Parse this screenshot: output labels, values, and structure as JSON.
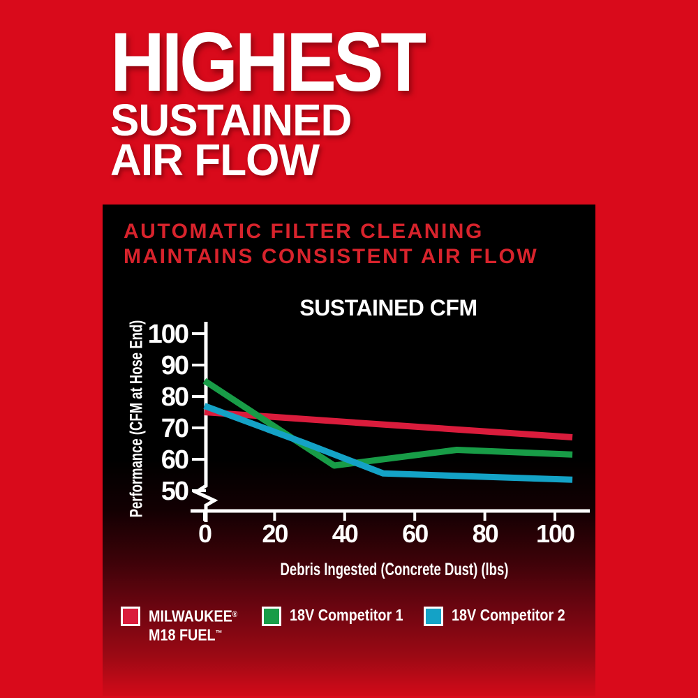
{
  "hero": {
    "line1": "HIGHEST",
    "line2": "SUSTAINED",
    "line3": "AIR FLOW"
  },
  "panel": {
    "heading_line1": "AUTOMATIC FILTER CLEANING",
    "heading_line2": "MAINTAINS CONSISTENT AIR FLOW",
    "heading_color": "#d8232c"
  },
  "colors": {
    "background_red": "#d90a1b",
    "panel_black": "#000000",
    "text_white": "#ffffff",
    "milwaukee_line": "#da1c3c",
    "competitor1_line": "#189c47",
    "competitor2_line": "#14a2c6"
  },
  "chart_data": {
    "type": "line",
    "title": "SUSTAINED CFM",
    "xlabel": "Debris Ingested (Concrete Dust) (lbs)",
    "ylabel": "Performance (CFM at Hose End)",
    "x_ticks": [
      0,
      20,
      40,
      60,
      80,
      100
    ],
    "y_ticks": [
      100,
      90,
      80,
      70,
      60,
      50
    ],
    "xlim": [
      0,
      110
    ],
    "ylim": [
      50,
      100
    ],
    "y_axis_break": true,
    "grid": false,
    "legend_position": "bottom",
    "series": [
      {
        "name": "MILWAUKEE® M18 FUEL™",
        "legend_lines": [
          "MILWAUKEE®",
          "M18 FUEL™"
        ],
        "color": "#da1c3c",
        "points": [
          [
            0,
            75
          ],
          [
            52,
            71
          ],
          [
            105,
            67
          ]
        ]
      },
      {
        "name": "18V Competitor 1",
        "legend_lines": [
          "18V Competitor 1"
        ],
        "color": "#189c47",
        "points": [
          [
            0,
            85
          ],
          [
            37,
            58
          ],
          [
            72,
            63
          ],
          [
            105,
            61.5
          ]
        ]
      },
      {
        "name": "18V Competitor 2",
        "legend_lines": [
          "18V Competitor 2"
        ],
        "color": "#14a2c6",
        "points": [
          [
            0,
            77
          ],
          [
            29,
            65
          ],
          [
            51,
            55.5
          ],
          [
            105,
            53.5
          ]
        ]
      }
    ]
  }
}
